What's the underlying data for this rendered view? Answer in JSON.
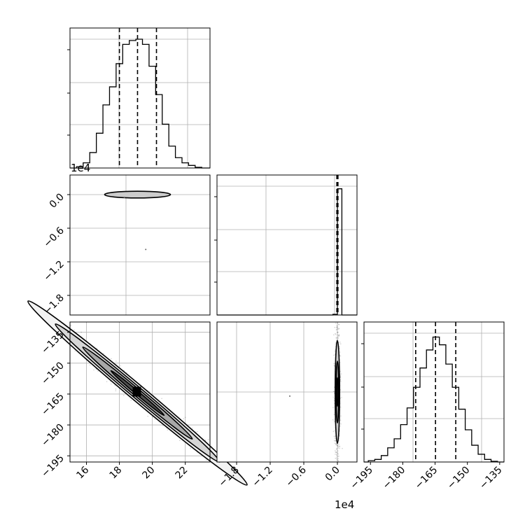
{
  "chart_data": {
    "type": "corner",
    "grid": true,
    "axis_offset_label": "1e4",
    "panels": [
      {
        "id": "hist-p1",
        "type": "histogram",
        "xlim": [
          15.0,
          23.5
        ],
        "ylim": [
          0,
          1.0
        ],
        "quantile_lines": [
          18.0,
          19.1,
          20.25
        ],
        "bins": [
          [
            15.0,
            0.0
          ],
          [
            15.4,
            0.01
          ],
          [
            15.8,
            0.04
          ],
          [
            16.2,
            0.12
          ],
          [
            16.6,
            0.27
          ],
          [
            17.0,
            0.49
          ],
          [
            17.4,
            0.63
          ],
          [
            17.8,
            0.81
          ],
          [
            18.2,
            0.96
          ],
          [
            18.6,
            0.99
          ],
          [
            19.0,
            1.0
          ],
          [
            19.4,
            0.96
          ],
          [
            19.8,
            0.79
          ],
          [
            20.2,
            0.57
          ],
          [
            20.6,
            0.34
          ],
          [
            21.0,
            0.17
          ],
          [
            21.4,
            0.08
          ],
          [
            21.8,
            0.04
          ],
          [
            22.2,
            0.02
          ],
          [
            22.6,
            0.005
          ],
          [
            23.0,
            0.0
          ]
        ]
      },
      {
        "id": "scatter-p1-p2",
        "type": "density_scatter",
        "xlim": [
          15.0,
          23.5
        ],
        "ylim": [
          -2.15,
          0.35
        ],
        "yticks": [
          "0.0",
          "−0.6",
          "−1.2",
          "−1.8"
        ],
        "ytick_values": [
          0.0,
          -0.6,
          -1.2,
          -1.8
        ],
        "center": [
          19.1,
          0.0
        ],
        "contours": [
          {
            "rx": 0.8,
            "ry": 0.02,
            "fill": "#3a3a3a"
          },
          {
            "rx": 1.4,
            "ry": 0.04,
            "fill": "#7a7a7a"
          },
          {
            "rx": 2.0,
            "ry": 0.06,
            "fill": "#cccccc"
          }
        ],
        "outliers": [
          [
            19.6,
            -0.98
          ],
          [
            18.3,
            -0.05
          ]
        ]
      },
      {
        "id": "hist-p2",
        "type": "histogram",
        "xlim": [
          -2.15,
          0.35
        ],
        "ylim": [
          0,
          1.0
        ],
        "quantile_lines": [
          -0.01,
          0.0,
          0.01
        ],
        "bins": [
          [
            -2.15,
            0.0
          ],
          [
            -0.08,
            0.005
          ],
          [
            0.0,
            0.98
          ],
          [
            0.08,
            0.0
          ]
        ]
      },
      {
        "id": "scatter-p1-p3",
        "type": "density_scatter",
        "xlim": [
          15.0,
          23.5
        ],
        "ylim": [
          -198,
          -130
        ],
        "xticks": [
          "16",
          "18",
          "20",
          "22"
        ],
        "xtick_values": [
          16,
          18,
          20,
          22
        ],
        "yticks": [
          "−135",
          "−150",
          "−165",
          "−180",
          "−195"
        ],
        "ytick_values": [
          -135,
          -150,
          -165,
          -180,
          -195
        ],
        "center": [
          19.1,
          -164.5
        ],
        "angle_deg": 40,
        "contours": [
          {
            "rx": 14.0,
            "ry": 6.8,
            "fill": "#f2f2f2"
          },
          {
            "rx": 10.5,
            "ry": 4.9,
            "fill": "#d6d6d6"
          },
          {
            "rx": 7.0,
            "ry": 3.2,
            "fill": "#a8a8a8"
          },
          {
            "rx": 3.4,
            "ry": 1.5,
            "fill": "#505050"
          }
        ]
      },
      {
        "id": "scatter-p2-p3",
        "type": "density_scatter",
        "xlim": [
          -2.15,
          0.35
        ],
        "ylim": [
          -198,
          -130
        ],
        "xticks": [
          "−1.8",
          "−1.2",
          "−0.6",
          "0.0"
        ],
        "xtick_values": [
          -1.8,
          -1.2,
          -0.6,
          0.0
        ],
        "center": [
          0.0,
          -164.0
        ],
        "contours": [
          {
            "rx": 0.04,
            "ry": 25,
            "fill": "#cfcfcf"
          },
          {
            "rx": 0.025,
            "ry": 15,
            "fill": "#8f8f8f"
          },
          {
            "rx": 0.012,
            "ry": 7,
            "fill": "#3a3a3a"
          }
        ],
        "outliers": [
          [
            -0.85,
            -166.0
          ]
        ]
      },
      {
        "id": "hist-p3",
        "type": "histogram",
        "xlim": [
          -198,
          -133
        ],
        "ylim": [
          0,
          1.0
        ],
        "xticks": [
          "−195",
          "−180",
          "−165",
          "−150",
          "−135"
        ],
        "xtick_values": [
          -195,
          -180,
          -165,
          -150,
          -135
        ],
        "quantile_lines": [
          -174.0,
          -164.8,
          -155.4
        ],
        "bins": [
          [
            -198,
            0.0
          ],
          [
            -196,
            0.01
          ],
          [
            -193,
            0.02
          ],
          [
            -190,
            0.05
          ],
          [
            -187,
            0.11
          ],
          [
            -184,
            0.18
          ],
          [
            -181,
            0.29
          ],
          [
            -178,
            0.42
          ],
          [
            -175,
            0.58
          ],
          [
            -172,
            0.73
          ],
          [
            -169,
            0.87
          ],
          [
            -166,
            0.97
          ],
          [
            -163,
            0.91
          ],
          [
            -160,
            0.76
          ],
          [
            -157,
            0.58
          ],
          [
            -154,
            0.41
          ],
          [
            -151,
            0.25
          ],
          [
            -148,
            0.13
          ],
          [
            -145,
            0.06
          ],
          [
            -142,
            0.02
          ],
          [
            -139,
            0.005
          ],
          [
            -136,
            0.0
          ]
        ]
      }
    ]
  }
}
